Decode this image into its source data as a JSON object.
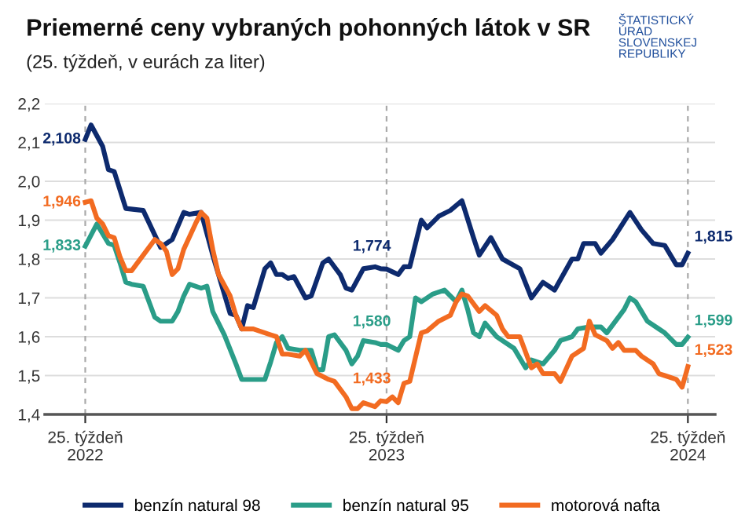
{
  "chart_data": {
    "type": "line",
    "title": "Priemerné ceny vybraných pohonných látok v SR",
    "subtitle": "(25. týždeň, v eurách za liter)",
    "xlim": [
      "2022-05-02",
      "2024-07-20"
    ],
    "xticks": [
      {
        "value": "2022-06-20",
        "label": "25. týždeň\n2022"
      },
      {
        "value": "2023-06-19",
        "label": "25. týždeň\n2023"
      },
      {
        "value": "2024-06-17",
        "label": "25. týždeň\n2024"
      }
    ],
    "ylim": [
      1.4,
      2.2
    ],
    "yticks": [
      {
        "value": 1.4,
        "label": "1,4"
      },
      {
        "value": 1.5,
        "label": "1,5"
      },
      {
        "value": 1.6,
        "label": "1,6"
      },
      {
        "value": 1.7,
        "label": "1,7"
      },
      {
        "value": 1.8,
        "label": "1,8"
      },
      {
        "value": 1.9,
        "label": "1,9"
      },
      {
        "value": 2.0,
        "label": "2,0"
      },
      {
        "value": 2.1,
        "label": "2,1"
      },
      {
        "value": 2.2,
        "label": "2,2"
      }
    ],
    "grid": "y",
    "legend": "bottom",
    "marker": "none",
    "line_style": "solid",
    "ref_lines": [
      {
        "axis": "x",
        "value": "2022-06-20",
        "color": "#aaaaaa",
        "line_style": "dashed"
      },
      {
        "axis": "x",
        "value": "2023-06-19",
        "color": "#aaaaaa",
        "line_style": "dashed"
      },
      {
        "axis": "x",
        "value": "2024-06-17",
        "color": "#aaaaaa",
        "line_style": "dashed"
      }
    ],
    "series": [
      {
        "name": "benzín natural 98",
        "color": "#0d2a6e",
        "x": [
          "2022-06-20",
          "2022-06-27",
          "2022-07-11",
          "2022-07-18",
          "2022-07-25",
          "2022-08-08",
          "2022-08-29",
          "2022-09-19",
          "2022-10-03",
          "2022-10-17",
          "2022-10-24",
          "2022-11-07",
          "2022-11-21",
          "2022-12-12",
          "2022-12-19",
          "2022-12-26",
          "2023-01-02",
          "2023-01-09",
          "2023-01-23",
          "2023-01-30",
          "2023-02-06",
          "2023-02-13",
          "2023-02-20",
          "2023-02-27",
          "2023-03-13",
          "2023-03-20",
          "2023-04-03",
          "2023-04-10",
          "2023-04-24",
          "2023-05-01",
          "2023-05-08",
          "2023-05-22",
          "2023-06-05",
          "2023-06-12",
          "2023-06-19",
          "2023-07-03",
          "2023-07-10",
          "2023-07-17",
          "2023-07-31",
          "2023-08-07",
          "2023-08-21",
          "2023-09-04",
          "2023-09-18",
          "2023-10-02",
          "2023-10-09",
          "2023-10-23",
          "2023-11-06",
          "2023-11-27",
          "2023-12-11",
          "2023-12-25",
          "2024-01-08",
          "2024-01-29",
          "2024-02-05",
          "2024-02-12",
          "2024-02-26",
          "2024-03-04",
          "2024-03-18",
          "2024-04-08",
          "2024-04-22",
          "2024-05-06",
          "2024-05-20",
          "2024-06-03",
          "2024-06-10",
          "2024-06-17"
        ],
        "values": [
          2.108,
          2.145,
          2.09,
          2.03,
          2.025,
          1.93,
          1.925,
          1.83,
          1.85,
          1.92,
          1.915,
          1.92,
          1.81,
          1.66,
          1.655,
          1.62,
          1.68,
          1.675,
          1.775,
          1.79,
          1.76,
          1.76,
          1.75,
          1.755,
          1.7,
          1.705,
          1.79,
          1.8,
          1.76,
          1.725,
          1.72,
          1.775,
          1.78,
          1.775,
          1.774,
          1.76,
          1.78,
          1.78,
          1.9,
          1.88,
          1.91,
          1.925,
          1.95,
          1.855,
          1.81,
          1.855,
          1.8,
          1.775,
          1.7,
          1.74,
          1.72,
          1.8,
          1.8,
          1.84,
          1.84,
          1.815,
          1.85,
          1.92,
          1.875,
          1.84,
          1.835,
          1.785,
          1.785,
          1.815
        ]
      },
      {
        "name": "benzín natural 95",
        "color": "#2a9d88",
        "x": [
          "2022-06-20",
          "2022-07-04",
          "2022-07-18",
          "2022-07-25",
          "2022-08-01",
          "2022-08-08",
          "2022-08-15",
          "2022-08-29",
          "2022-09-12",
          "2022-09-19",
          "2022-10-03",
          "2022-10-10",
          "2022-10-17",
          "2022-10-24",
          "2022-10-31",
          "2022-11-07",
          "2022-11-14",
          "2022-11-21",
          "2022-12-05",
          "2022-12-19",
          "2022-12-26",
          "2023-01-09",
          "2023-01-16",
          "2023-01-23",
          "2023-01-30",
          "2023-02-06",
          "2023-02-13",
          "2023-02-20",
          "2023-03-06",
          "2023-03-20",
          "2023-03-27",
          "2023-04-03",
          "2023-04-10",
          "2023-04-17",
          "2023-05-01",
          "2023-05-08",
          "2023-05-15",
          "2023-05-22",
          "2023-06-05",
          "2023-06-12",
          "2023-06-19",
          "2023-07-03",
          "2023-07-10",
          "2023-07-17",
          "2023-07-24",
          "2023-07-31",
          "2023-08-14",
          "2023-08-28",
          "2023-09-11",
          "2023-09-18",
          "2023-09-25",
          "2023-10-02",
          "2023-10-09",
          "2023-10-16",
          "2023-10-30",
          "2023-11-06",
          "2023-11-20",
          "2023-12-04",
          "2023-12-11",
          "2023-12-25",
          "2024-01-08",
          "2024-01-15",
          "2024-01-29",
          "2024-02-05",
          "2024-02-19",
          "2024-03-04",
          "2024-03-11",
          "2024-04-01",
          "2024-04-08",
          "2024-04-15",
          "2024-04-22",
          "2024-04-29",
          "2024-05-13",
          "2024-05-20",
          "2024-06-03",
          "2024-06-10",
          "2024-06-17"
        ],
        "values": [
          1.833,
          1.89,
          1.84,
          1.835,
          1.79,
          1.74,
          1.735,
          1.73,
          1.65,
          1.64,
          1.64,
          1.665,
          1.705,
          1.735,
          1.73,
          1.725,
          1.73,
          1.665,
          1.605,
          1.53,
          1.49,
          1.49,
          1.49,
          1.49,
          1.535,
          1.585,
          1.6,
          1.57,
          1.565,
          1.565,
          1.515,
          1.515,
          1.6,
          1.605,
          1.565,
          1.53,
          1.55,
          1.59,
          1.585,
          1.58,
          1.58,
          1.565,
          1.59,
          1.6,
          1.7,
          1.69,
          1.71,
          1.72,
          1.69,
          1.72,
          1.67,
          1.61,
          1.6,
          1.635,
          1.6,
          1.59,
          1.57,
          1.52,
          1.54,
          1.53,
          1.565,
          1.59,
          1.6,
          1.62,
          1.625,
          1.625,
          1.61,
          1.67,
          1.7,
          1.69,
          1.665,
          1.64,
          1.62,
          1.61,
          1.58,
          1.58,
          1.599
        ]
      },
      {
        "name": "motorová nafta",
        "color": "#f26b21",
        "x": [
          "2022-06-20",
          "2022-06-27",
          "2022-07-04",
          "2022-07-11",
          "2022-07-18",
          "2022-07-25",
          "2022-08-01",
          "2022-08-08",
          "2022-08-15",
          "2022-08-29",
          "2022-09-12",
          "2022-09-19",
          "2022-09-26",
          "2022-10-03",
          "2022-10-10",
          "2022-10-17",
          "2022-10-31",
          "2022-11-07",
          "2022-11-14",
          "2022-11-21",
          "2022-11-28",
          "2022-12-12",
          "2022-12-19",
          "2022-12-26",
          "2023-01-09",
          "2023-01-16",
          "2023-01-30",
          "2023-02-06",
          "2023-02-13",
          "2023-02-20",
          "2023-03-06",
          "2023-03-13",
          "2023-03-20",
          "2023-03-27",
          "2023-04-10",
          "2023-04-17",
          "2023-05-01",
          "2023-05-08",
          "2023-05-15",
          "2023-05-22",
          "2023-06-05",
          "2023-06-12",
          "2023-06-19",
          "2023-06-26",
          "2023-07-03",
          "2023-07-10",
          "2023-07-17",
          "2023-07-31",
          "2023-08-07",
          "2023-08-21",
          "2023-09-04",
          "2023-09-11",
          "2023-09-18",
          "2023-09-25",
          "2023-10-09",
          "2023-10-16",
          "2023-10-30",
          "2023-11-06",
          "2023-11-13",
          "2023-11-27",
          "2023-12-11",
          "2023-12-18",
          "2023-12-25",
          "2024-01-08",
          "2024-01-15",
          "2024-01-29",
          "2024-02-12",
          "2024-02-19",
          "2024-02-26",
          "2024-03-11",
          "2024-03-18",
          "2024-03-25",
          "2024-04-01",
          "2024-04-15",
          "2024-04-22",
          "2024-05-06",
          "2024-05-13",
          "2024-05-20",
          "2024-06-03",
          "2024-06-10",
          "2024-06-17"
        ],
        "values": [
          1.946,
          1.95,
          1.905,
          1.89,
          1.86,
          1.855,
          1.805,
          1.77,
          1.77,
          1.81,
          1.85,
          1.84,
          1.82,
          1.76,
          1.775,
          1.825,
          1.89,
          1.92,
          1.905,
          1.825,
          1.76,
          1.705,
          1.655,
          1.62,
          1.62,
          1.615,
          1.605,
          1.6,
          1.555,
          1.555,
          1.55,
          1.565,
          1.535,
          1.505,
          1.49,
          1.485,
          1.445,
          1.415,
          1.415,
          1.43,
          1.42,
          1.435,
          1.433,
          1.445,
          1.43,
          1.48,
          1.485,
          1.61,
          1.615,
          1.64,
          1.655,
          1.69,
          1.71,
          1.705,
          1.665,
          1.68,
          1.655,
          1.62,
          1.6,
          1.6,
          1.52,
          1.53,
          1.505,
          1.505,
          1.485,
          1.55,
          1.57,
          1.64,
          1.605,
          1.59,
          1.57,
          1.585,
          1.565,
          1.565,
          1.55,
          1.53,
          1.505,
          1.5,
          1.49,
          1.47,
          1.523
        ]
      }
    ],
    "annotations": [
      {
        "text": "2,108",
        "x": "2022-06-20",
        "y": 2.108
      },
      {
        "text": "1,946",
        "x": "2022-06-20",
        "y": 1.946
      },
      {
        "text": "1,833",
        "x": "2022-06-20",
        "y": 1.833
      },
      {
        "text": "1,774",
        "x": "2023-06-19",
        "y": 1.774
      },
      {
        "text": "1,580",
        "x": "2023-06-19",
        "y": 1.58
      },
      {
        "text": "1,433",
        "x": "2023-06-19",
        "y": 1.433
      },
      {
        "text": "1,815",
        "x": "2024-06-17",
        "y": 1.815
      },
      {
        "text": "1,599",
        "x": "2024-06-17",
        "y": 1.599
      },
      {
        "text": "1,523",
        "x": "2024-06-17",
        "y": 1.523
      },
      "ŠTATISTICKÝ\nÚRAD\nSLOVENSKEJ\nREPUBLIKY"
    ]
  }
}
